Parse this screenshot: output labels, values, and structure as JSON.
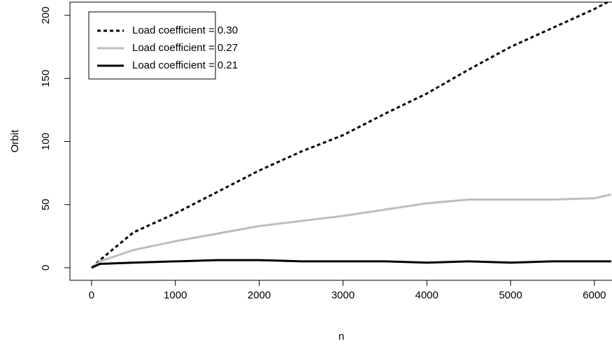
{
  "chart_data": {
    "type": "line",
    "x_label": "n",
    "y_label": "Orbit",
    "x": [
      0,
      100,
      500,
      1000,
      1500,
      2000,
      2500,
      3000,
      3500,
      4000,
      4500,
      5000,
      5500,
      6000,
      6200
    ],
    "series": [
      {
        "name": "Load coefficient = 0.30",
        "color": "#000000",
        "dash": "5,4",
        "values": [
          0,
          6,
          28,
          43,
          60,
          77,
          92,
          105,
          122,
          138,
          157,
          175,
          190,
          205,
          212
        ]
      },
      {
        "name": "Load coefficient = 0.27",
        "color": "#bdbdbd",
        "dash": "none",
        "values": [
          0,
          5,
          14,
          21,
          27,
          33,
          37,
          41,
          46,
          51,
          54,
          54,
          54,
          55,
          58
        ]
      },
      {
        "name": "Load coefficient = 0.21",
        "color": "#000000",
        "dash": "none",
        "values": [
          0,
          3,
          4,
          5,
          6,
          6,
          5,
          5,
          5,
          4,
          5,
          4,
          5,
          5,
          5
        ]
      }
    ],
    "xlim": [
      -258,
      6210
    ],
    "ylim": [
      -10,
      210.5
    ],
    "xticks": [
      0,
      1000,
      2000,
      3000,
      4000,
      5000,
      6000
    ],
    "yticks": [
      0,
      50,
      100,
      150,
      200
    ],
    "legend": "top-left"
  }
}
